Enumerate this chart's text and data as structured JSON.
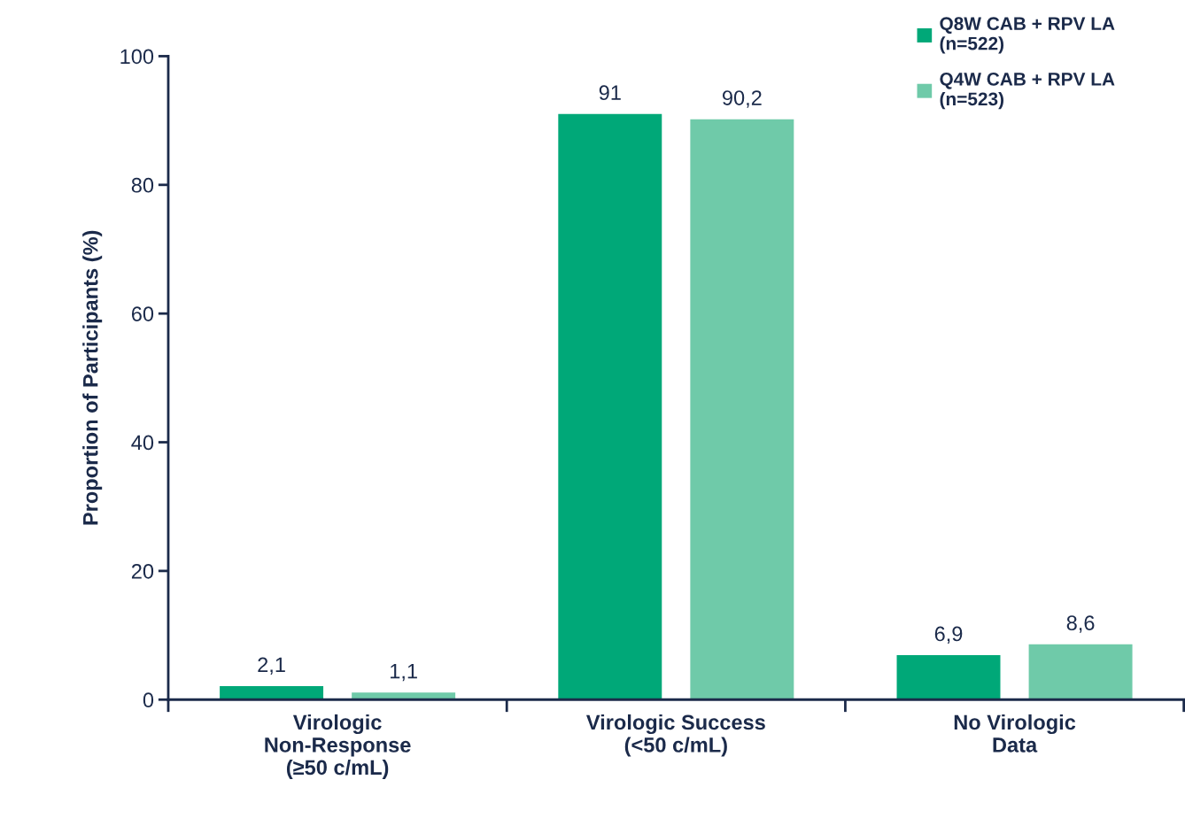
{
  "chart_data": {
    "type": "bar",
    "ylabel": "Proportion of Participants (%)",
    "categories": [
      "Virologic\nNon-Response\n(≥50 c/mL)",
      "Virologic Success\n(<50 c/mL)",
      "No Virologic\nData"
    ],
    "series": [
      {
        "name": "Q8W CAB + RPV LA\n(n=522)",
        "color": "#00a878",
        "values": [
          2.1,
          91,
          6.9
        ],
        "value_labels": [
          "2,1",
          "91",
          "6,9"
        ]
      },
      {
        "name": "Q4W CAB + RPV LA\n(n=523)",
        "color": "#6fcaa9",
        "values": [
          1.1,
          90.2,
          8.6
        ],
        "value_labels": [
          "1,1",
          "90,2",
          "8,6"
        ]
      }
    ],
    "ylim": [
      0,
      100
    ],
    "yticks": [
      0,
      20,
      40,
      60,
      80,
      100
    ],
    "grid": false,
    "legend": "top right"
  }
}
